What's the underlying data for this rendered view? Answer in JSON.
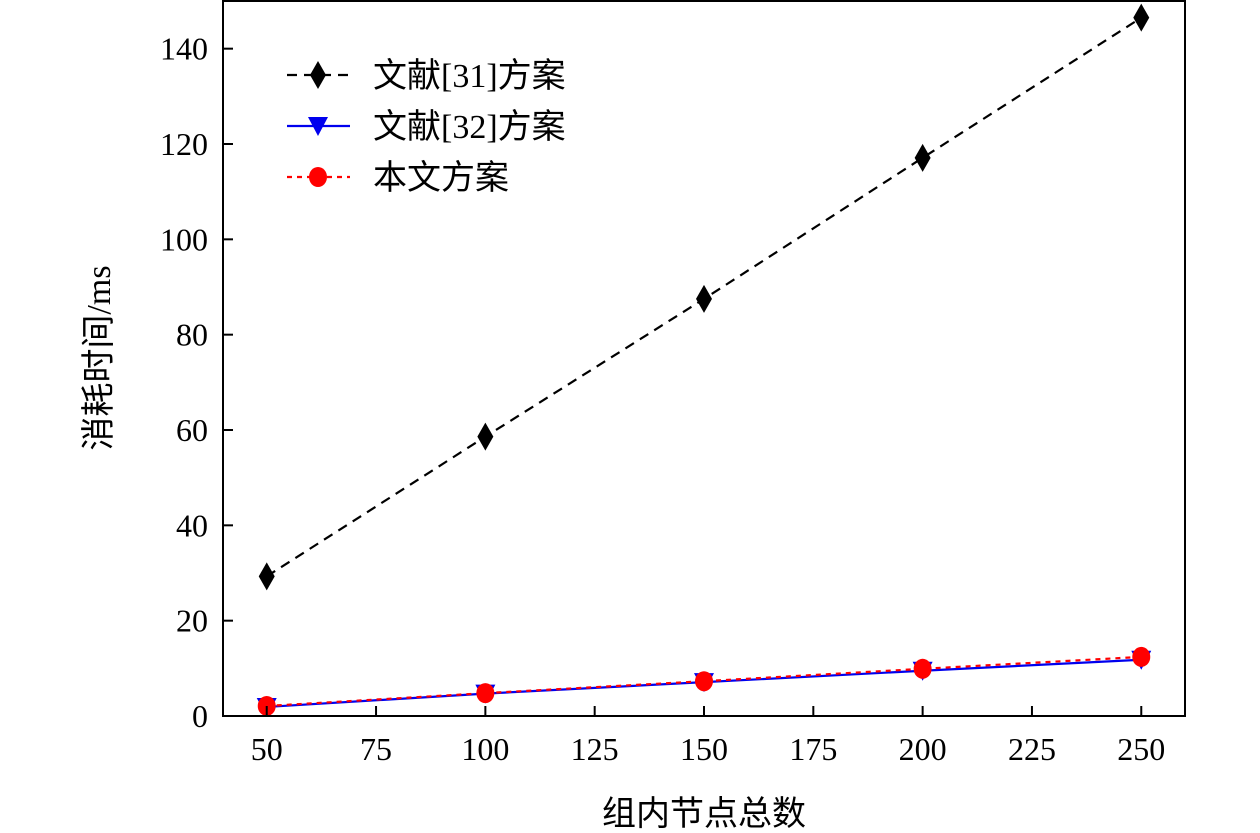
{
  "chart_data": {
    "type": "line",
    "title": "",
    "xlabel": "组内节点总数",
    "ylabel": "消耗时间/ms",
    "xlim": [
      40,
      260
    ],
    "ylim": [
      0,
      150
    ],
    "x": [
      50,
      100,
      150,
      200,
      250
    ],
    "xticks": [
      50,
      75,
      100,
      125,
      150,
      175,
      200,
      225,
      250
    ],
    "yticks": [
      0,
      20,
      40,
      60,
      80,
      100,
      120,
      140
    ],
    "grid": false,
    "legend_position": "top-left",
    "series": [
      {
        "name": "文献[31]方案",
        "values": [
          29.3,
          58.6,
          87.5,
          117.1,
          146.5
        ],
        "color": "#000000",
        "marker": "diamond",
        "dash": "dashed"
      },
      {
        "name": "文献[32]方案",
        "values": [
          1.9,
          4.7,
          7.1,
          9.5,
          11.8
        ],
        "color": "#0000ee",
        "marker": "triangle-down",
        "dash": "solid"
      },
      {
        "name": "本文方案",
        "values": [
          2.1,
          4.8,
          7.3,
          9.9,
          12.4
        ],
        "color": "#ff0000",
        "marker": "circle",
        "dash": "dotted"
      }
    ]
  }
}
